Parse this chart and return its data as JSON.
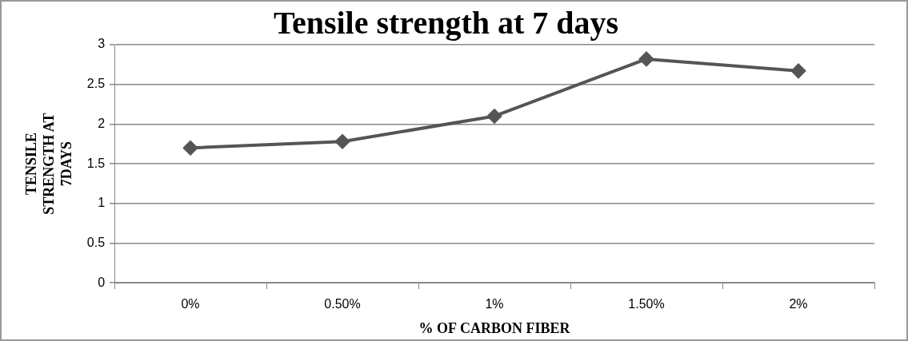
{
  "chart_data": {
    "type": "line",
    "title": "Tensile strength at 7 days",
    "xlabel": "% OF CARBON FIBER",
    "ylabel": "TENSILE STRENGTH AT 7DAYS",
    "categories": [
      "0%",
      "0.50%",
      "1%",
      "1.50%",
      "2%"
    ],
    "series": [
      {
        "color": "#555555",
        "values": [
          1.7,
          1.78,
          2.1,
          2.82,
          2.67
        ]
      }
    ],
    "ylim": [
      0,
      3
    ],
    "yticks": [
      0,
      0.5,
      1,
      1.5,
      2,
      2.5,
      3
    ],
    "grid": "y",
    "marker": "diamond",
    "line_style": "solid",
    "legend": false
  }
}
